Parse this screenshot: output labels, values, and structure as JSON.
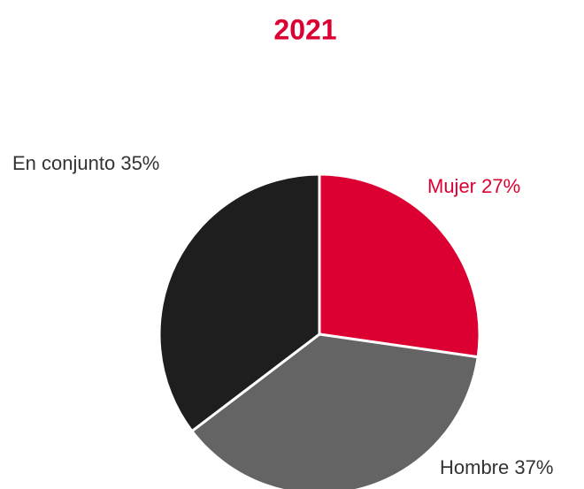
{
  "chart_data": {
    "type": "pie",
    "title": "2021",
    "categories": [
      "Mujer",
      "Hombre",
      "En conjunto"
    ],
    "values": [
      27,
      37,
      35
    ],
    "value_labels": [
      "27%",
      "37%",
      "35%"
    ],
    "colors": [
      "#dc0032",
      "#646464",
      "#1e1e1e"
    ],
    "label_colors": [
      "#dc0032",
      "#333333",
      "#333333"
    ],
    "title_color": "#dc0032"
  }
}
